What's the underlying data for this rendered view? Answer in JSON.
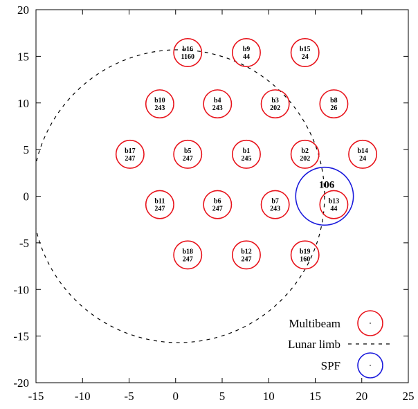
{
  "chart_data": {
    "type": "scatter",
    "xlim": [
      -15,
      25
    ],
    "ylim": [
      -20,
      20
    ],
    "x_ticks": [
      -15,
      -10,
      -5,
      0,
      5,
      10,
      15,
      20,
      25
    ],
    "y_ticks": [
      -20,
      -15,
      -10,
      -5,
      0,
      5,
      10,
      15,
      20
    ],
    "grid": false,
    "legend_position": "bottom-right",
    "legend": [
      {
        "label": "Multibeam",
        "color": "#e8141c"
      },
      {
        "label": "Lunar limb",
        "color": "#000000"
      },
      {
        "label": "SPF",
        "color": "#1a1adc"
      }
    ],
    "beam_radius": 1.5,
    "beams": [
      {
        "name": "b1",
        "value": "245",
        "x": 7.6,
        "y": 4.5
      },
      {
        "name": "b2",
        "value": "202",
        "x": 13.9,
        "y": 4.5
      },
      {
        "name": "b3",
        "value": "202",
        "x": 10.7,
        "y": 9.9
      },
      {
        "name": "b4",
        "value": "243",
        "x": 4.5,
        "y": 9.9
      },
      {
        "name": "b5",
        "value": "247",
        "x": 1.3,
        "y": 4.5
      },
      {
        "name": "b6",
        "value": "247",
        "x": 4.5,
        "y": -0.9
      },
      {
        "name": "b7",
        "value": "243",
        "x": 10.7,
        "y": -0.9
      },
      {
        "name": "b8",
        "value": "26",
        "x": 17.0,
        "y": 9.9
      },
      {
        "name": "b9",
        "value": "44",
        "x": 7.6,
        "y": 15.4
      },
      {
        "name": "b10",
        "value": "243",
        "x": -1.7,
        "y": 9.9
      },
      {
        "name": "b11",
        "value": "247",
        "x": -1.7,
        "y": -0.9
      },
      {
        "name": "b12",
        "value": "247",
        "x": 7.6,
        "y": -6.3
      },
      {
        "name": "b13",
        "value": "44",
        "x": 17.0,
        "y": -0.9
      },
      {
        "name": "b14",
        "value": "24",
        "x": 20.1,
        "y": 4.5
      },
      {
        "name": "b15",
        "value": "24",
        "x": 13.9,
        "y": 15.4
      },
      {
        "name": "b16",
        "value": "1160",
        "x": 1.3,
        "y": 15.4
      },
      {
        "name": "b17",
        "value": "247",
        "x": -4.9,
        "y": 4.5
      },
      {
        "name": "b18",
        "value": "247",
        "x": 1.3,
        "y": -6.3
      },
      {
        "name": "b19",
        "value": "160",
        "x": 13.9,
        "y": -6.3
      }
    ],
    "lunar_limb": {
      "center_x": 0.3,
      "center_y": 0.0,
      "radius": 15.7
    },
    "spf": {
      "label": "106",
      "center_x": 16.0,
      "center_y": 0.0,
      "radius": 3.1
    }
  }
}
